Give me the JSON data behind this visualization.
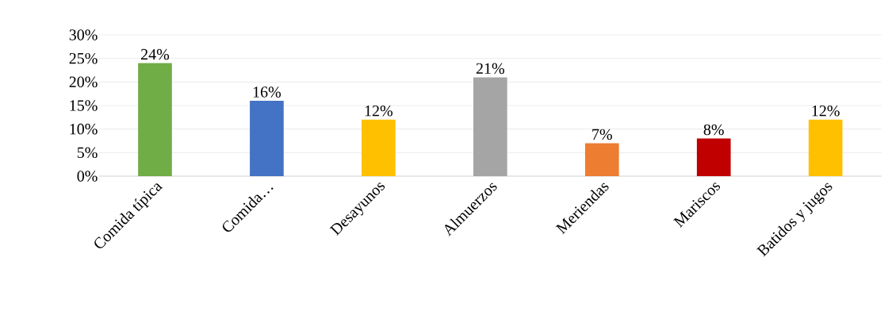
{
  "chart_data": {
    "type": "bar",
    "categories": [
      "Comida típica",
      "Comida…",
      "Desayunos",
      "Almuerzos",
      "Meriendas",
      "Mariscos",
      "Batidos y jugos"
    ],
    "values": [
      24,
      16,
      12,
      21,
      7,
      8,
      12
    ],
    "colors": [
      "#70ad47",
      "#4472c4",
      "#ffc000",
      "#a5a5a5",
      "#ed7d31",
      "#c00000",
      "#ffc000"
    ],
    "value_labels": [
      "24%",
      "16%",
      "12%",
      "21%",
      "7%",
      "8%",
      "12%"
    ],
    "ylim": [
      0,
      30
    ],
    "yticks": [
      {
        "value": 0,
        "label": "0%"
      },
      {
        "value": 5,
        "label": "5%"
      },
      {
        "value": 10,
        "label": "10%"
      },
      {
        "value": 15,
        "label": "15%"
      },
      {
        "value": 20,
        "label": "20%"
      },
      {
        "value": 25,
        "label": "25%"
      },
      {
        "value": 30,
        "label": "30%"
      }
    ],
    "grid": "y"
  }
}
